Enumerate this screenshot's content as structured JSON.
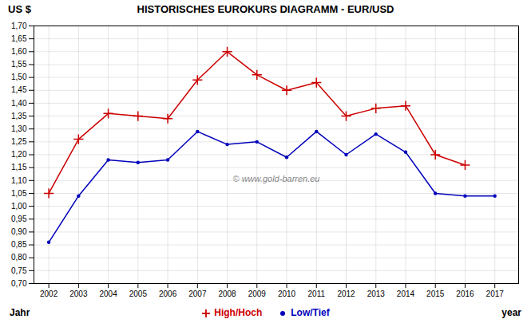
{
  "chart_data": {
    "type": "line",
    "title": "HISTORISCHES EUROKURS DIAGRAMM -  EUR/USD",
    "ylabel": "US $",
    "annotations": [
      "Jahr",
      "year",
      "© www.gold-barren.eu"
    ],
    "x": [
      2002,
      2003,
      2004,
      2005,
      2006,
      2007,
      2008,
      2009,
      2010,
      2011,
      2012,
      2013,
      2014,
      2015,
      2016,
      2017
    ],
    "series": [
      {
        "name": "High/Hoch",
        "color": "#cc0000",
        "marker": "plus",
        "values": [
          1.05,
          1.26,
          1.36,
          1.35,
          1.34,
          1.49,
          1.6,
          1.51,
          1.45,
          1.48,
          1.35,
          1.38,
          1.39,
          1.2,
          1.16,
          null
        ]
      },
      {
        "name": "Low/Tief",
        "color": "#0000bb",
        "marker": "point",
        "values": [
          0.86,
          1.04,
          1.18,
          1.17,
          1.18,
          1.29,
          1.24,
          1.25,
          1.19,
          1.29,
          1.2,
          1.28,
          1.21,
          1.05,
          1.04,
          1.04
        ]
      }
    ],
    "xlim": [
      2001.5,
      2017.8
    ],
    "xticks": [
      2002,
      2003,
      2004,
      2005,
      2006,
      2007,
      2008,
      2009,
      2010,
      2011,
      2012,
      2013,
      2014,
      2015,
      2016,
      2017
    ],
    "ylim": [
      0.7,
      1.7
    ],
    "yticks": [
      {
        "value": 0.7,
        "label": "0,70"
      },
      {
        "value": 0.75,
        "label": "0,75"
      },
      {
        "value": 0.8,
        "label": "0,80"
      },
      {
        "value": 0.85,
        "label": "0,85"
      },
      {
        "value": 0.9,
        "label": "0,90"
      },
      {
        "value": 0.95,
        "label": "0,95"
      },
      {
        "value": 1.0,
        "label": "1,00"
      },
      {
        "value": 1.05,
        "label": "1,05"
      },
      {
        "value": 1.1,
        "label": "1,10"
      },
      {
        "value": 1.15,
        "label": "1,15"
      },
      {
        "value": 1.2,
        "label": "1,20"
      },
      {
        "value": 1.25,
        "label": "1,25"
      },
      {
        "value": 1.3,
        "label": "1,30"
      },
      {
        "value": 1.35,
        "label": "1,35"
      },
      {
        "value": 1.4,
        "label": "1,40"
      },
      {
        "value": 1.45,
        "label": "1,45"
      },
      {
        "value": 1.5,
        "label": "1,50"
      },
      {
        "value": 1.55,
        "label": "1,55"
      },
      {
        "value": 1.6,
        "label": "1,60"
      },
      {
        "value": 1.65,
        "label": "1,65"
      },
      {
        "value": 1.7,
        "label": "1,70"
      }
    ],
    "grid": true,
    "legend": "bottom"
  }
}
